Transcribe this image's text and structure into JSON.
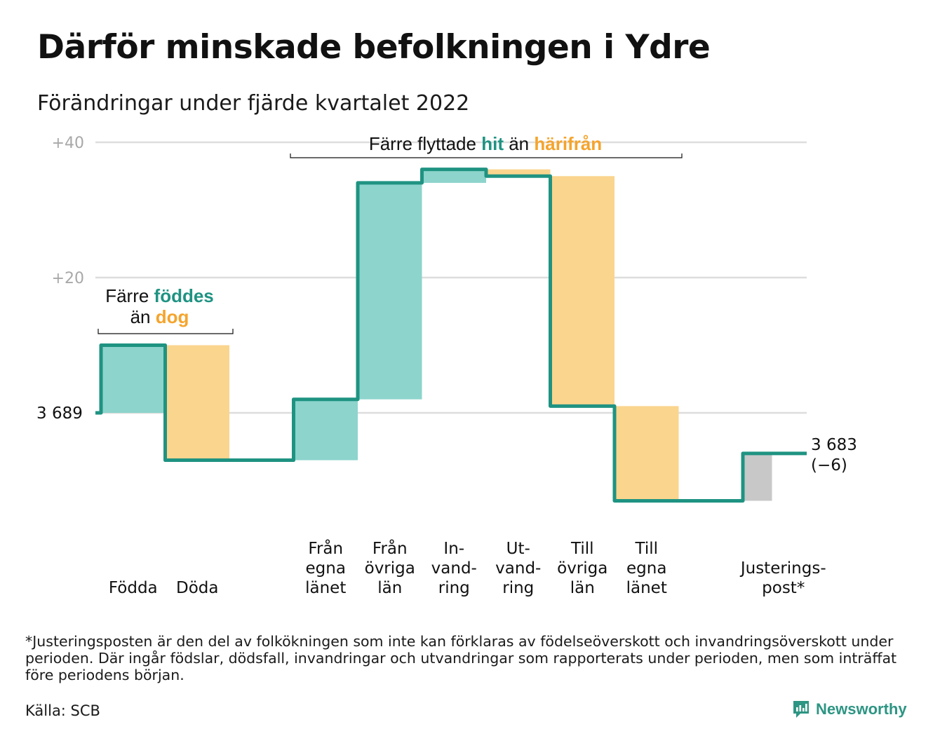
{
  "title": "Därför minskade befolkningen i Ydre",
  "subtitle": "Förändringar under fjärde kvartalet 2022",
  "footnote": "*Justeringsposten är den del av folkökningen som inte kan förklaras av födelseöverskott och invandringsöverskott under perioden. Där ingår födslar, dödsfall, invandringar och utvandringar som rapporterats under perioden, men som inträffat före periodens början.",
  "source": "Källa: SCB",
  "brand": {
    "name": "Newsworthy",
    "icon": "newsworthy-logo-icon"
  },
  "colors": {
    "increase": "#8dd4cc",
    "decrease": "#fad58e",
    "adjustment": "#c8c8c8",
    "line": "#1f9382",
    "grid": "#dddddd",
    "accent_orange": "#f5a42c",
    "accent_teal": "#1f9382"
  },
  "chart_data": {
    "type": "waterfall",
    "title": "Därför minskade befolkningen i Ydre",
    "subtitle": "Förändringar under fjärde kvartalet 2022",
    "start_value": 3689,
    "start_label": "3 689",
    "end_label": [
      "3 683",
      "(−6)"
    ],
    "ylim": [
      -13,
      40
    ],
    "yticks": [
      {
        "value": 20,
        "label": "+20"
      },
      {
        "value": 40,
        "label": "+40"
      }
    ],
    "grid": true,
    "bars": [
      {
        "id": "fodda",
        "label": [
          "Födda"
        ],
        "change": 10,
        "kind": "increase"
      },
      {
        "id": "doda",
        "label": [
          "Döda"
        ],
        "change": -17,
        "kind": "decrease"
      },
      {
        "id": "gap1",
        "label": [],
        "change": 0,
        "kind": "none"
      },
      {
        "id": "fran-egna",
        "label": [
          "Från",
          "egna",
          "länet"
        ],
        "change": 9,
        "kind": "increase"
      },
      {
        "id": "fran-ovriga",
        "label": [
          "Från",
          "övriga",
          "län"
        ],
        "change": 32,
        "kind": "increase"
      },
      {
        "id": "invandring",
        "label": [
          "In-",
          "vand-",
          "ring"
        ],
        "change": 2,
        "kind": "increase"
      },
      {
        "id": "utvandring",
        "label": [
          "Ut-",
          "vand-",
          "ring"
        ],
        "change": -1,
        "kind": "decrease"
      },
      {
        "id": "till-ovriga",
        "label": [
          "Till",
          "övriga",
          "län"
        ],
        "change": -34,
        "kind": "decrease"
      },
      {
        "id": "till-egna",
        "label": [
          "Till",
          "egna",
          "länet"
        ],
        "change": -14,
        "kind": "decrease"
      },
      {
        "id": "gap2",
        "label": [],
        "change": 0,
        "kind": "none"
      },
      {
        "id": "justering",
        "label": [
          "Justerings-",
          "post*"
        ],
        "change": 7,
        "kind": "adjustment"
      }
    ],
    "annotations": [
      {
        "id": "births-deaths",
        "parts": [
          {
            "text": "Färre ",
            "style": "plain"
          },
          {
            "text": "föddes",
            "style": "teal"
          },
          {
            "text": "än ",
            "style": "plain",
            "newline": true
          },
          {
            "text": "dog",
            "style": "orange"
          }
        ]
      },
      {
        "id": "migration",
        "parts": [
          {
            "text": "Färre flyttade ",
            "style": "plain"
          },
          {
            "text": "hit",
            "style": "teal"
          },
          {
            "text": " än ",
            "style": "plain"
          },
          {
            "text": "härifrån",
            "style": "orange"
          }
        ]
      }
    ]
  }
}
